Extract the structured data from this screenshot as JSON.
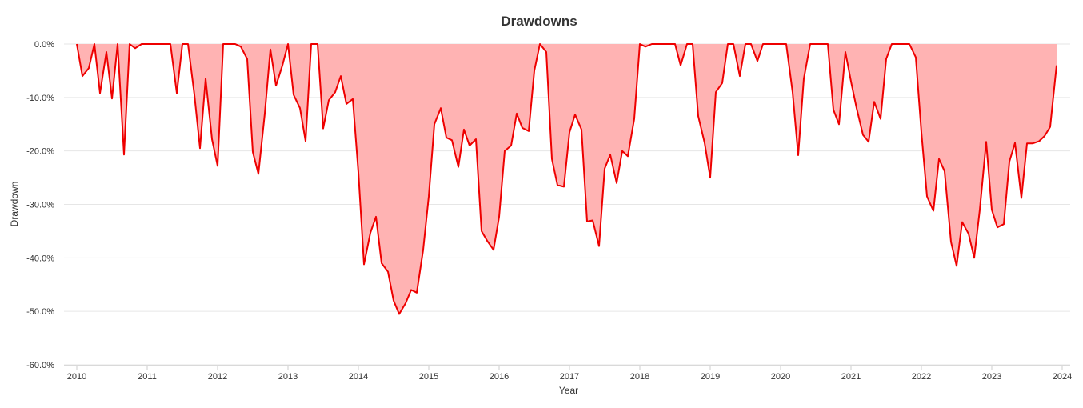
{
  "chart_data": {
    "type": "area",
    "title": "Drawdowns",
    "xlabel": "Year",
    "ylabel": "Drawdown",
    "xlim": [
      2010,
      2024
    ],
    "ylim": [
      -60,
      0
    ],
    "x_ticks": [
      "2010",
      "2011",
      "2012",
      "2013",
      "2014",
      "2015",
      "2016",
      "2017",
      "2018",
      "2019",
      "2020",
      "2021",
      "2022",
      "2023",
      "2024"
    ],
    "y_ticks": [
      "0.0%",
      "-10.0%",
      "-20.0%",
      "-30.0%",
      "-40.0%",
      "-50.0%",
      "-60.0%"
    ],
    "grid": true,
    "legend": "none",
    "colors": {
      "line": "#ee0000",
      "fill": "#ffb3b3"
    },
    "series": [
      {
        "x": [
          2010.0,
          2010.08,
          2010.17,
          2010.25,
          2010.33,
          2010.42,
          2010.5,
          2010.58,
          2010.67,
          2010.75,
          2010.83,
          2010.92,
          2011.0,
          2011.08,
          2011.17,
          2011.25,
          2011.33,
          2011.42,
          2011.5,
          2011.58,
          2011.67,
          2011.75,
          2011.83,
          2011.92,
          2012.0,
          2012.08,
          2012.17,
          2012.25,
          2012.33,
          2012.42,
          2012.5,
          2012.58,
          2012.67,
          2012.75,
          2012.83,
          2012.92,
          2013.0,
          2013.08,
          2013.17,
          2013.25,
          2013.33,
          2013.42,
          2013.5,
          2013.58,
          2013.67,
          2013.75,
          2013.83,
          2013.92,
          2014.0,
          2014.08,
          2014.17,
          2014.25,
          2014.33,
          2014.42,
          2014.5,
          2014.58,
          2014.67,
          2014.75,
          2014.83,
          2014.92,
          2015.0,
          2015.08,
          2015.17,
          2015.25,
          2015.33,
          2015.42,
          2015.5,
          2015.58,
          2015.67,
          2015.75,
          2015.83,
          2015.92,
          2016.0,
          2016.08,
          2016.17,
          2016.25,
          2016.33,
          2016.42,
          2016.5,
          2016.58,
          2016.67,
          2016.75,
          2016.83,
          2016.92,
          2017.0,
          2017.08,
          2017.17,
          2017.25,
          2017.33,
          2017.42,
          2017.5,
          2017.58,
          2017.67,
          2017.75,
          2017.83,
          2017.92,
          2018.0,
          2018.08,
          2018.17,
          2018.25,
          2018.33,
          2018.42,
          2018.5,
          2018.58,
          2018.67,
          2018.75,
          2018.83,
          2018.92,
          2019.0,
          2019.08,
          2019.17,
          2019.25,
          2019.33,
          2019.42,
          2019.5,
          2019.58,
          2019.67,
          2019.75,
          2019.83,
          2019.92,
          2020.0,
          2020.08,
          2020.17,
          2020.25,
          2020.33,
          2020.42,
          2020.5,
          2020.58,
          2020.67,
          2020.75,
          2020.83,
          2020.92,
          2021.0,
          2021.08,
          2021.17,
          2021.25,
          2021.33,
          2021.42,
          2021.5,
          2021.58,
          2021.67,
          2021.75,
          2021.83,
          2021.92,
          2022.0,
          2022.08,
          2022.17,
          2022.25,
          2022.33,
          2022.42,
          2022.5,
          2022.58,
          2022.67,
          2022.75,
          2022.83,
          2022.92,
          2023.0,
          2023.08,
          2023.17,
          2023.25,
          2023.33,
          2023.42,
          2023.5,
          2023.58,
          2023.67,
          2023.75,
          2023.83,
          2023.92
        ],
        "values": [
          0.0,
          -6.0,
          -4.5,
          0.0,
          -9.2,
          -1.5,
          -10.2,
          0.0,
          -20.7,
          0.0,
          -0.8,
          0.0,
          0.0,
          0.0,
          0.0,
          0.0,
          0.0,
          -9.2,
          0.0,
          0.0,
          -9.5,
          -19.5,
          -6.5,
          -17.8,
          -22.8,
          0.0,
          0.0,
          0.0,
          -0.5,
          -2.8,
          -20.2,
          -24.3,
          -13.0,
          -1.0,
          -7.8,
          -4.0,
          0.0,
          -9.5,
          -12.0,
          -18.2,
          0.0,
          0.0,
          -15.8,
          -10.5,
          -9.0,
          -6.0,
          -11.2,
          -10.3,
          -24.0,
          -41.2,
          -35.3,
          -32.3,
          -41.0,
          -42.6,
          -48.0,
          -50.5,
          -48.5,
          -46.0,
          -46.5,
          -38.5,
          -28.5,
          -15.0,
          -12.0,
          -17.5,
          -18.0,
          -23.0,
          -16.0,
          -19.0,
          -17.8,
          -35.0,
          -36.8,
          -38.5,
          -32.3,
          -20.0,
          -19.0,
          -13.0,
          -15.7,
          -16.3,
          -5.0,
          0.0,
          -1.5,
          -21.5,
          -26.4,
          -26.7,
          -16.5,
          -13.2,
          -16.0,
          -33.2,
          -33.0,
          -37.8,
          -23.3,
          -20.7,
          -26.0,
          -20.0,
          -21.0,
          -14.0,
          0.0,
          -0.5,
          0.0,
          0.0,
          0.0,
          0.0,
          0.0,
          -4.0,
          0.0,
          0.0,
          -13.5,
          -18.5,
          -25.0,
          -9.0,
          -7.3,
          0.0,
          0.0,
          -6.0,
          0.0,
          0.0,
          -3.2,
          0.0,
          0.0,
          0.0,
          0.0,
          0.0,
          -9.0,
          -20.8,
          -6.5,
          0.0,
          0.0,
          0.0,
          0.0,
          -12.3,
          -15.0,
          -1.5,
          -7.0,
          -12.0,
          -17.0,
          -18.3,
          -10.8,
          -14.0,
          -2.8,
          0.0,
          0.0,
          0.0,
          0.0,
          -2.5,
          -16.5,
          -28.5,
          -31.2,
          -21.5,
          -23.8,
          -37.0,
          -41.5,
          -33.3,
          -35.5,
          -40.0,
          -31.0,
          -18.3,
          -31.0,
          -34.3,
          -33.7,
          -22.0,
          -18.5,
          -28.8,
          -18.6,
          -18.6,
          -18.2,
          -17.2,
          -15.5,
          -4.0
        ]
      }
    ]
  }
}
